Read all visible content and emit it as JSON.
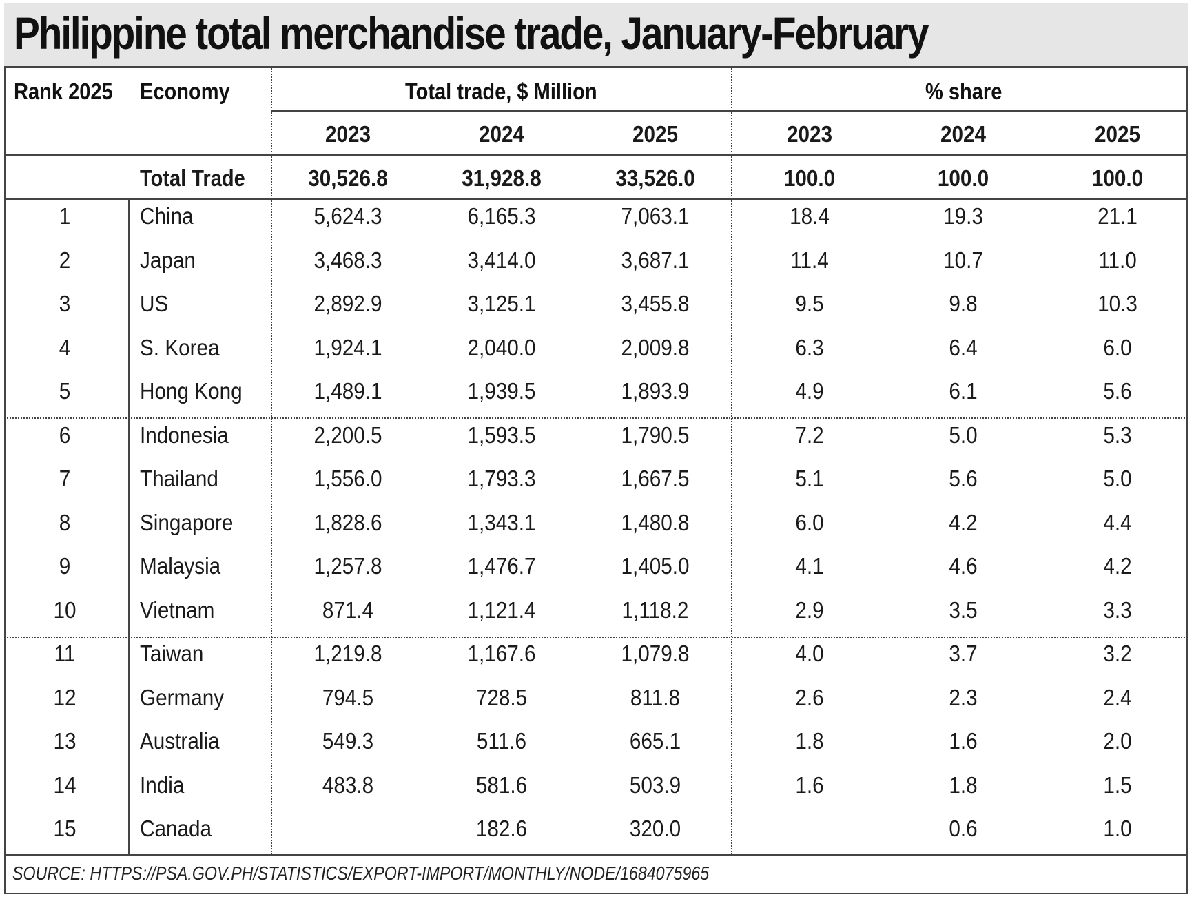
{
  "title": "Philippine total merchandise trade, January-February",
  "headers": {
    "rank": "Rank 2025",
    "economy": "Economy",
    "total_trade": "Total trade, $ Million",
    "share": "% share",
    "years": [
      "2023",
      "2024",
      "2025",
      "2023",
      "2024",
      "2025"
    ]
  },
  "total": {
    "label": "Total Trade",
    "values": [
      "30,526.8",
      "31,928.8",
      "33,526.0",
      "100.0",
      "100.0",
      "100.0"
    ]
  },
  "rows": [
    {
      "rank": "1",
      "economy": "China",
      "values": [
        "5,624.3",
        "6,165.3",
        "7,063.1",
        "18.4",
        "19.3",
        "21.1"
      ]
    },
    {
      "rank": "2",
      "economy": "Japan",
      "values": [
        "3,468.3",
        "3,414.0",
        "3,687.1",
        "11.4",
        "10.7",
        "11.0"
      ]
    },
    {
      "rank": "3",
      "economy": "US",
      "values": [
        "2,892.9",
        "3,125.1",
        "3,455.8",
        "9.5",
        "9.8",
        "10.3"
      ]
    },
    {
      "rank": "4",
      "economy": "S. Korea",
      "values": [
        "1,924.1",
        "2,040.0",
        "2,009.8",
        "6.3",
        "6.4",
        "6.0"
      ]
    },
    {
      "rank": "5",
      "economy": "Hong Kong",
      "values": [
        "1,489.1",
        "1,939.5",
        "1,893.9",
        "4.9",
        "6.1",
        "5.6"
      ]
    },
    {
      "rank": "6",
      "economy": "Indonesia",
      "values": [
        "2,200.5",
        "1,593.5",
        "1,790.5",
        "7.2",
        "5.0",
        "5.3"
      ]
    },
    {
      "rank": "7",
      "economy": "Thailand",
      "values": [
        "1,556.0",
        "1,793.3",
        "1,667.5",
        "5.1",
        "5.6",
        "5.0"
      ]
    },
    {
      "rank": "8",
      "economy": "Singapore",
      "values": [
        "1,828.6",
        "1,343.1",
        "1,480.8",
        "6.0",
        "4.2",
        "4.4"
      ]
    },
    {
      "rank": "9",
      "economy": "Malaysia",
      "values": [
        "1,257.8",
        "1,476.7",
        "1,405.0",
        "4.1",
        "4.6",
        "4.2"
      ]
    },
    {
      "rank": "10",
      "economy": "Vietnam",
      "values": [
        "871.4",
        "1,121.4",
        "1,118.2",
        "2.9",
        "3.5",
        "3.3"
      ]
    },
    {
      "rank": "11",
      "economy": "Taiwan",
      "values": [
        "1,219.8",
        "1,167.6",
        "1,079.8",
        "4.0",
        "3.7",
        "3.2"
      ]
    },
    {
      "rank": "12",
      "economy": "Germany",
      "values": [
        "794.5",
        "728.5",
        "811.8",
        "2.6",
        "2.3",
        "2.4"
      ]
    },
    {
      "rank": "13",
      "economy": "Australia",
      "values": [
        "549.3",
        "511.6",
        "665.1",
        "1.8",
        "1.6",
        "2.0"
      ]
    },
    {
      "rank": "14",
      "economy": "India",
      "values": [
        "483.8",
        "581.6",
        "503.9",
        "1.6",
        "1.8",
        "1.5"
      ]
    },
    {
      "rank": "15",
      "economy": "Canada",
      "values": [
        "",
        "182.6",
        "320.0",
        "",
        "0.6",
        "1.0"
      ]
    }
  ],
  "source": "SOURCE: HTTPS://PSA.GOV.PH/STATISTICS/EXPORT-IMPORT/MONTHLY/NODE/1684075965"
}
